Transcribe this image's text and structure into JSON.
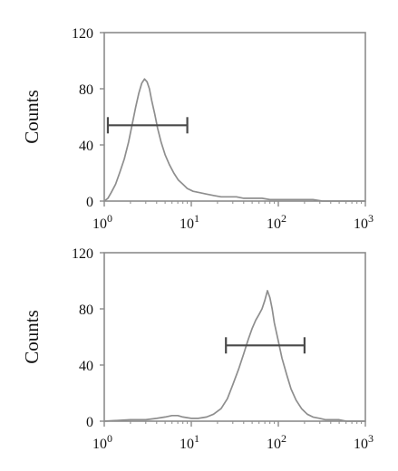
{
  "colors": {
    "axis": "#8c8c8c",
    "curve": "#8e8e8e",
    "gate": "#4a4a4a",
    "text": "#111111",
    "background": "#ffffff"
  },
  "chart_data": [
    {
      "type": "line",
      "title": "",
      "xlabel": "",
      "ylabel": "Counts",
      "xscale": "log",
      "xlim": [
        1,
        1000
      ],
      "ylim": [
        0,
        120
      ],
      "x_tick_labels": [
        {
          "base": "10",
          "exp": "0"
        },
        {
          "base": "10",
          "exp": "1"
        },
        {
          "base": "10",
          "exp": "2"
        },
        {
          "base": "10",
          "exp": "3"
        }
      ],
      "y_tick_labels": [
        "0",
        "40",
        "80",
        "120"
      ],
      "grid": false,
      "series": [
        {
          "x": [
            1,
            1.1,
            1.2,
            1.35,
            1.5,
            1.7,
            1.9,
            2.1,
            2.3,
            2.5,
            2.7,
            2.9,
            3.1,
            3.3,
            3.5,
            3.8,
            4.1,
            4.5,
            5.0,
            5.6,
            6.3,
            7.1,
            8.0,
            9.0,
            10.5,
            12.5,
            15,
            18,
            22,
            27,
            33,
            40,
            50,
            65,
            80,
            100,
            130,
            160,
            200,
            250,
            320,
            400,
            500,
            650,
            800,
            1000
          ],
          "y": [
            0,
            2,
            6,
            12,
            20,
            30,
            42,
            55,
            67,
            77,
            84,
            87,
            85,
            80,
            72,
            62,
            52,
            42,
            33,
            26,
            20,
            15,
            12,
            9,
            7,
            6,
            5,
            4,
            3,
            3,
            3,
            2,
            2,
            2,
            1,
            1,
            1,
            1,
            1,
            1,
            0,
            0,
            0,
            0,
            0,
            0
          ]
        }
      ],
      "gate": {
        "x_start": 1.1,
        "x_end": 9.0,
        "y": 54
      }
    },
    {
      "type": "line",
      "title": "",
      "xlabel": "",
      "ylabel": "Counts",
      "xscale": "log",
      "xlim": [
        1,
        1000
      ],
      "ylim": [
        0,
        120
      ],
      "x_tick_labels": [
        {
          "base": "10",
          "exp": "0"
        },
        {
          "base": "10",
          "exp": "1"
        },
        {
          "base": "10",
          "exp": "2"
        },
        {
          "base": "10",
          "exp": "3"
        }
      ],
      "y_tick_labels": [
        "0",
        "40",
        "80",
        "120"
      ],
      "grid": false,
      "series": [
        {
          "x": [
            1,
            2,
            3,
            4,
            5,
            6,
            7,
            8,
            10,
            12,
            15,
            18,
            22,
            26,
            30,
            35,
            40,
            45,
            50,
            55,
            60,
            65,
            70,
            75,
            80,
            85,
            90,
            100,
            110,
            125,
            140,
            160,
            185,
            215,
            250,
            300,
            350,
            420,
            500,
            600,
            750,
            1000
          ],
          "y": [
            0,
            1,
            1,
            2,
            3,
            4,
            4,
            3,
            2,
            2,
            3,
            5,
            9,
            16,
            26,
            37,
            48,
            58,
            66,
            72,
            76,
            80,
            86,
            93,
            88,
            80,
            70,
            57,
            45,
            33,
            23,
            15,
            9,
            5,
            3,
            2,
            1,
            1,
            1,
            0,
            0,
            0
          ]
        }
      ],
      "gate": {
        "x_start": 25,
        "x_end": 200,
        "y": 54
      }
    }
  ]
}
